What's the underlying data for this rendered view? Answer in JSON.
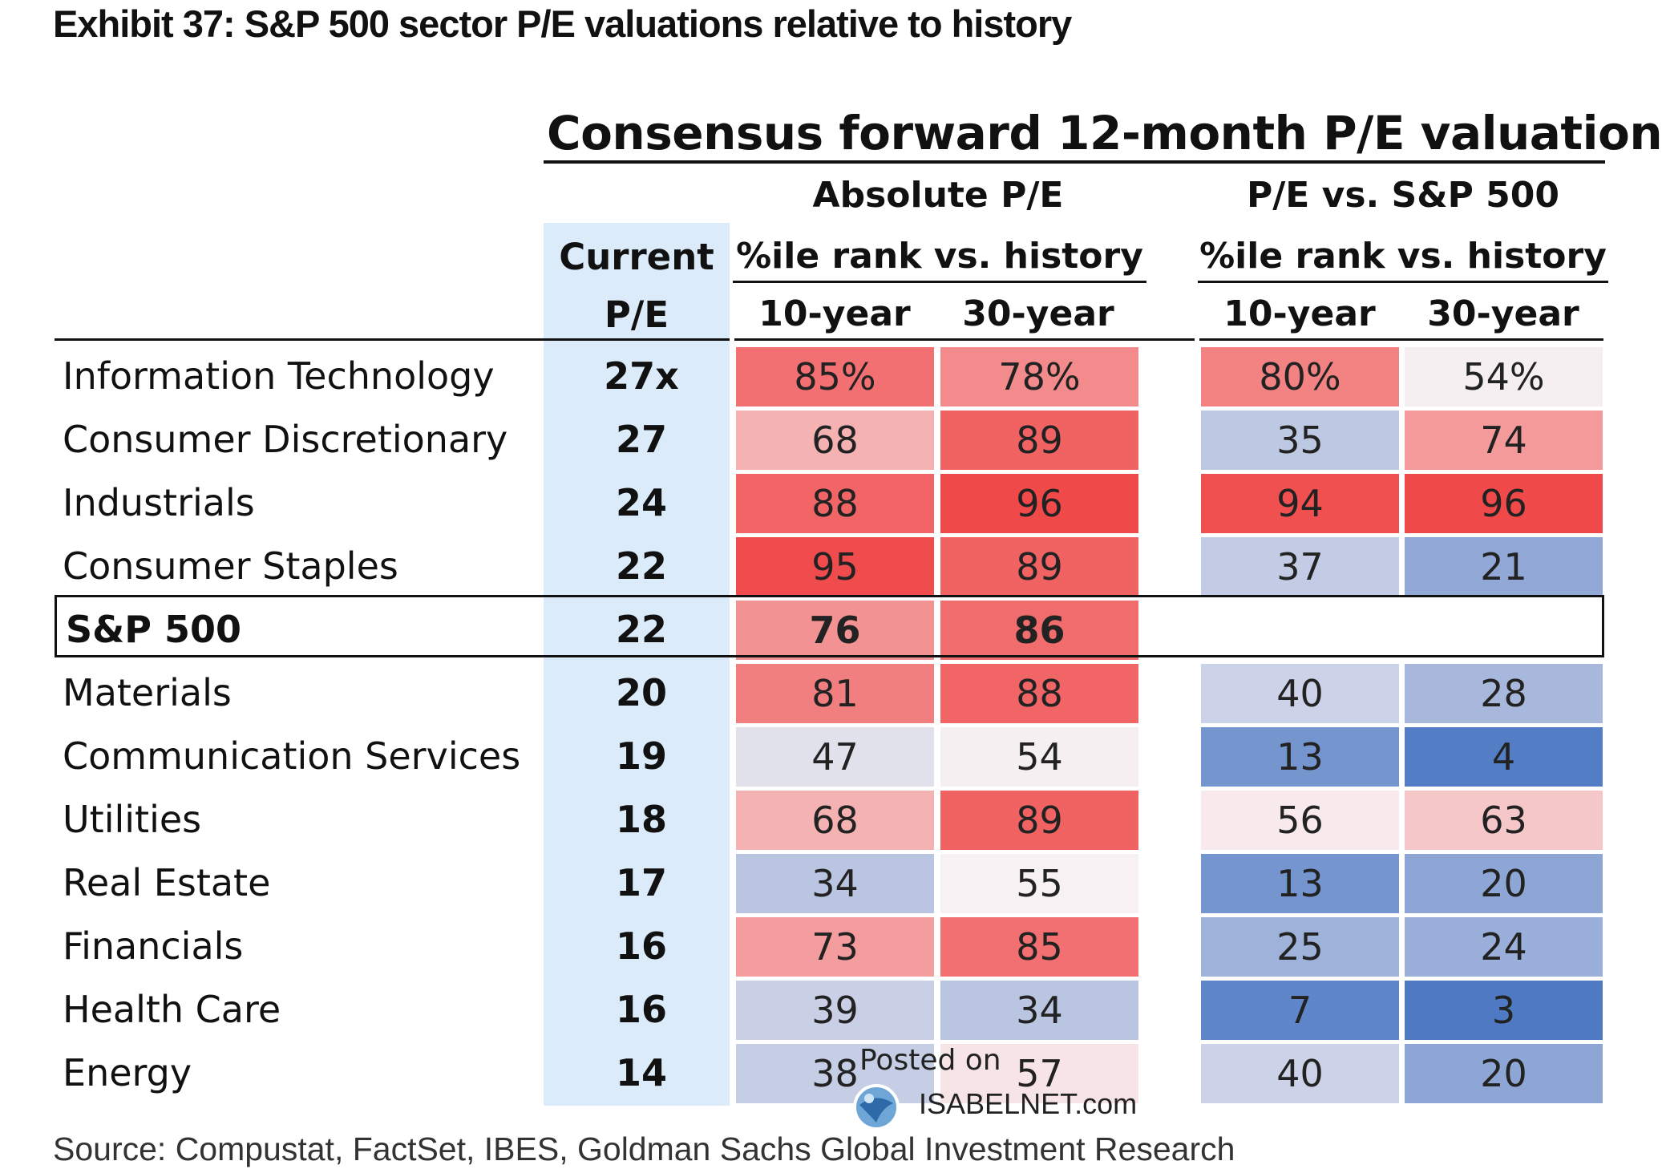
{
  "exhibit_title": "Exhibit 37: S&P 500 sector P/E valuations relative to history",
  "chart_data": {
    "type": "table",
    "title": "Consensus forward 12-month P/E valuation",
    "current_header": [
      "Current",
      "P/E"
    ],
    "groups": [
      {
        "title": "Absolute P/E",
        "subtitle": "%ile rank vs. history",
        "columns": [
          "10-year",
          "30-year"
        ]
      },
      {
        "title": "P/E vs. S&P 500",
        "subtitle": "%ile rank vs. history",
        "columns": [
          "10-year",
          "30-year"
        ]
      }
    ],
    "rows": [
      {
        "label": "Information Technology",
        "current": "27x",
        "abs10": "85%",
        "abs30": "78%",
        "rel10": "80%",
        "rel30": "54%"
      },
      {
        "label": "Consumer Discretionary",
        "current": "27",
        "abs10": "68",
        "abs30": "89",
        "rel10": "35",
        "rel30": "74"
      },
      {
        "label": "Industrials",
        "current": "24",
        "abs10": "88",
        "abs30": "96",
        "rel10": "94",
        "rel30": "96"
      },
      {
        "label": "Consumer Staples",
        "current": "22",
        "abs10": "95",
        "abs30": "89",
        "rel10": "37",
        "rel30": "21"
      },
      {
        "label": "S&P 500",
        "current": "22",
        "abs10": "76",
        "abs30": "86",
        "rel10": "",
        "rel30": "",
        "bold": true
      },
      {
        "label": "Materials",
        "current": "20",
        "abs10": "81",
        "abs30": "88",
        "rel10": "40",
        "rel30": "28"
      },
      {
        "label": "Communication Services",
        "current": "19",
        "abs10": "47",
        "abs30": "54",
        "rel10": "13",
        "rel30": "4"
      },
      {
        "label": "Utilities",
        "current": "18",
        "abs10": "68",
        "abs30": "89",
        "rel10": "56",
        "rel30": "63"
      },
      {
        "label": "Real Estate",
        "current": "17",
        "abs10": "34",
        "abs30": "55",
        "rel10": "13",
        "rel30": "20"
      },
      {
        "label": "Financials",
        "current": "16",
        "abs10": "73",
        "abs30": "85",
        "rel10": "25",
        "rel30": "24"
      },
      {
        "label": "Health Care",
        "current": "16",
        "abs10": "39",
        "abs30": "34",
        "rel10": "7",
        "rel30": "3"
      },
      {
        "label": "Energy",
        "current": "14",
        "abs10": "38",
        "abs30": "57",
        "rel10": "40",
        "rel30": "20"
      }
    ]
  },
  "colors": {
    "high": "#ef3b3b",
    "mid": "#f8f1f3",
    "low": "#3f6fbf",
    "current_column": "#dcebfa"
  },
  "watermark": {
    "line1": "Posted on",
    "line2": "ISABELNET.com"
  },
  "source": "Source: Compustat, FactSet, IBES, Goldman Sachs Global Investment Research"
}
